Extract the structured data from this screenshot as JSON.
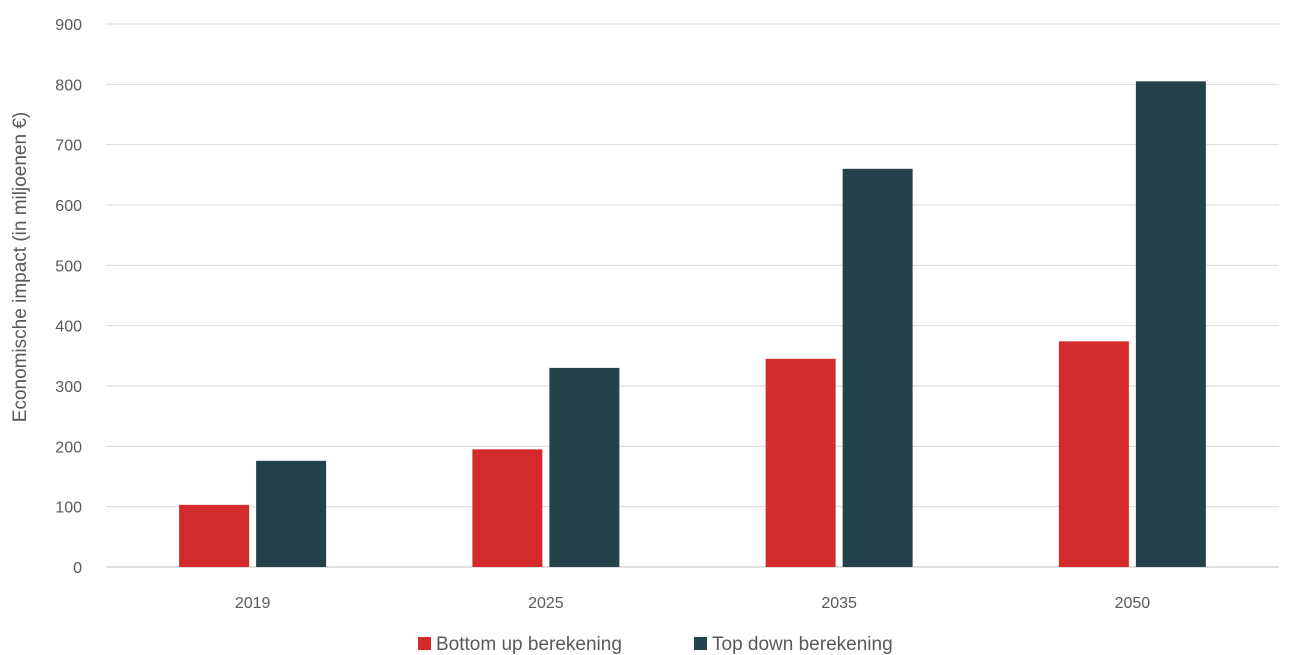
{
  "chart_data": {
    "type": "bar",
    "title": "",
    "xlabel": "",
    "ylabel": "Economische impact (in miljoenen €)",
    "categories": [
      "2019",
      "2025",
      "2035",
      "2050"
    ],
    "series": [
      {
        "name": "Bottom up berekening",
        "color": "#d32b2b",
        "values": [
          103,
          195,
          345,
          374
        ]
      },
      {
        "name": "Top down berekening",
        "color": "#24424a",
        "values": [
          176,
          330,
          660,
          805
        ]
      }
    ],
    "ylim": [
      0,
      900
    ],
    "yticks": [
      "0",
      "100",
      "200",
      "300",
      "400",
      "500",
      "600",
      "700",
      "800",
      "900"
    ],
    "grid": true,
    "legend_position": "bottom"
  }
}
